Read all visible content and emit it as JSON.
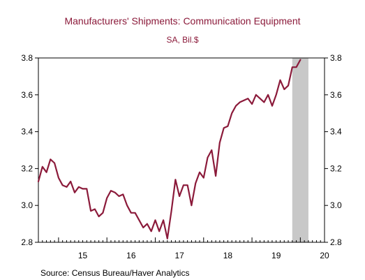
{
  "chart_data": {
    "type": "line",
    "title": "Manufacturers' Shipments: Communication Equipment",
    "subtitle": "SA, Bil.$",
    "source": "Source:  Census Bureau/Haver Analytics",
    "xlabel": "",
    "ylabel": "",
    "ylim": [
      2.8,
      3.8
    ],
    "y_ticks": [
      "2.8",
      "3.0",
      "3.2",
      "3.4",
      "3.6",
      "3.8"
    ],
    "x_ticks": [
      "15",
      "16",
      "17",
      "18",
      "19",
      "20"
    ],
    "xlim": [
      2014.583,
      2020.5
    ],
    "grid": false,
    "legend": "none",
    "line_color": "#8b1a3a",
    "recession_shading": {
      "start": 2019.833,
      "end": 2020.167,
      "color": "#c8c8c8"
    },
    "series": [
      {
        "x": [
          2014.583,
          2014.667,
          2014.75,
          2014.833,
          2014.917,
          2015.0,
          2015.083,
          2015.167,
          2015.25,
          2015.333,
          2015.417,
          2015.5,
          2015.583,
          2015.667,
          2015.75,
          2015.833,
          2015.917,
          2016.0,
          2016.083,
          2016.167,
          2016.25,
          2016.333,
          2016.417,
          2016.5,
          2016.583,
          2016.667,
          2016.75,
          2016.833,
          2016.917,
          2017.0,
          2017.083,
          2017.167,
          2017.25,
          2017.333,
          2017.417,
          2017.5,
          2017.583,
          2017.667,
          2017.75,
          2017.833,
          2017.917,
          2018.0,
          2018.083,
          2018.167,
          2018.25,
          2018.333,
          2018.417,
          2018.5,
          2018.583,
          2018.667,
          2018.75,
          2018.833,
          2018.917,
          2019.0,
          2019.083,
          2019.167,
          2019.25,
          2019.333,
          2019.417,
          2019.5,
          2019.583,
          2019.667,
          2019.75,
          2019.833,
          2019.917,
          2020.0
        ],
        "values": [
          3.13,
          3.21,
          3.18,
          3.25,
          3.23,
          3.15,
          3.11,
          3.1,
          3.13,
          3.07,
          3.1,
          3.09,
          3.09,
          2.97,
          2.98,
          2.94,
          2.96,
          3.04,
          3.08,
          3.07,
          3.05,
          3.06,
          3.0,
          2.96,
          2.96,
          2.92,
          2.88,
          2.9,
          2.86,
          2.92,
          2.86,
          2.92,
          2.82,
          2.97,
          3.14,
          3.05,
          3.11,
          3.11,
          3.0,
          3.12,
          3.18,
          3.15,
          3.26,
          3.3,
          3.16,
          3.34,
          3.42,
          3.43,
          3.5,
          3.54,
          3.56,
          3.57,
          3.58,
          3.55,
          3.6,
          3.58,
          3.56,
          3.6,
          3.54,
          3.6,
          3.68,
          3.63,
          3.65,
          3.75,
          3.75,
          3.79
        ]
      }
    ]
  }
}
